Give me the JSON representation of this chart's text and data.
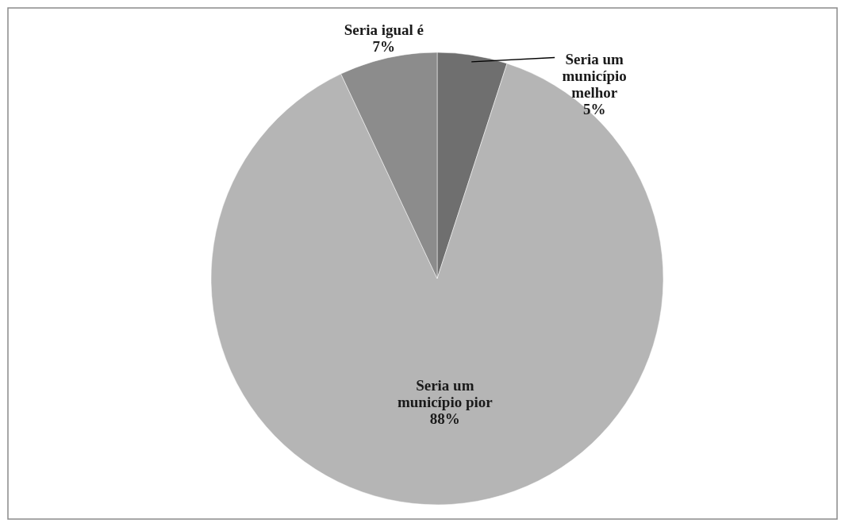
{
  "chart_data": {
    "type": "pie",
    "categories": [
      "Seria um município melhor",
      "Seria um município pior",
      "Seria igual é"
    ],
    "values": [
      5,
      88,
      7
    ],
    "colors": [
      "#6f6f6f",
      "#b5b5b5",
      "#8c8c8c"
    ],
    "value_labels": [
      "5%",
      "88%",
      "7%"
    ]
  }
}
